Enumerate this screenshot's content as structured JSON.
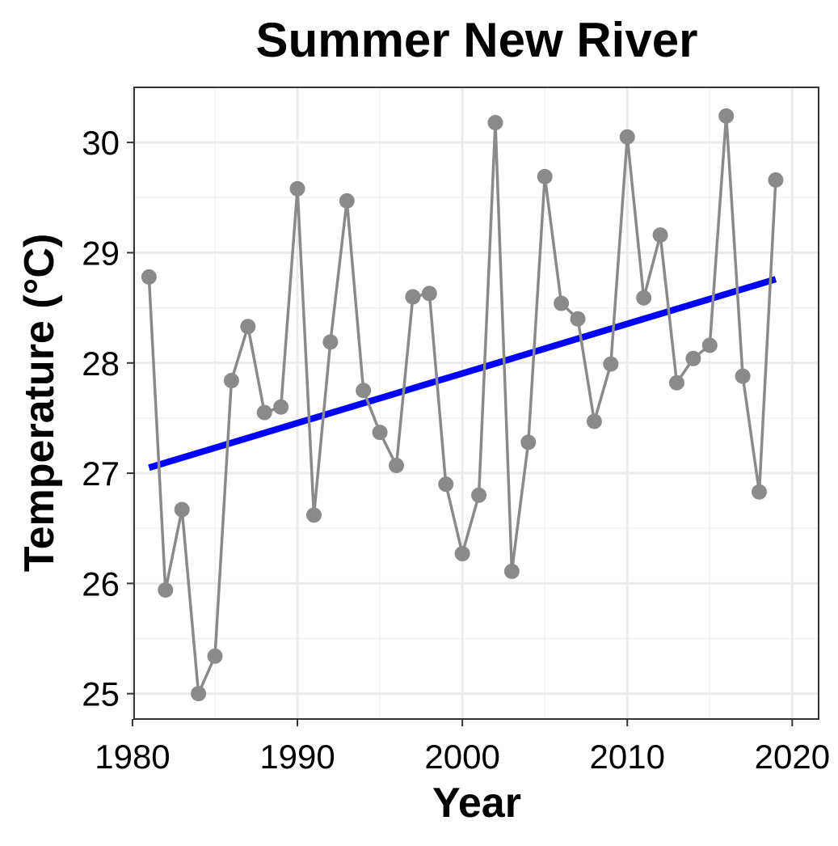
{
  "chart_data": {
    "type": "line",
    "title": "Summer New River",
    "xlabel": "Year",
    "ylabel": "Temperature (°C)",
    "xlim": [
      1980.1,
      2021.6
    ],
    "ylim": [
      24.77,
      30.5
    ],
    "x_ticks": [
      1980,
      1990,
      2000,
      2010,
      2020
    ],
    "x_tick_labels": [
      "1980",
      "1990",
      "2000",
      "2010",
      "2020"
    ],
    "y_ticks": [
      25,
      26,
      27,
      28,
      29,
      30
    ],
    "y_tick_labels": [
      "25",
      "26",
      "27",
      "28",
      "29",
      "30"
    ],
    "grid": true,
    "series": [
      {
        "color": "#8a8a8a",
        "x": [
          1981,
          1982,
          1983,
          1984,
          1985,
          1986,
          1987,
          1988,
          1989,
          1990,
          1991,
          1992,
          1993,
          1994,
          1995,
          1996,
          1997,
          1998,
          1999,
          2000,
          2001,
          2002,
          2003,
          2004,
          2005,
          2006,
          2007,
          2008,
          2009,
          2010,
          2011,
          2012,
          2013,
          2014,
          2015,
          2016,
          2017,
          2018,
          2019
        ],
        "y": [
          28.78,
          25.94,
          26.67,
          25.0,
          25.34,
          27.84,
          28.33,
          27.55,
          27.6,
          29.58,
          26.62,
          28.19,
          29.47,
          27.75,
          27.37,
          27.07,
          28.6,
          28.63,
          26.9,
          26.27,
          26.8,
          30.18,
          26.11,
          27.28,
          29.69,
          28.54,
          28.4,
          27.47,
          27.99,
          30.05,
          28.59,
          29.16,
          27.82,
          28.04,
          28.16,
          30.24,
          27.88,
          26.83,
          29.66
        ]
      }
    ],
    "trend_line": {
      "color": "#0000ff",
      "x": [
        1981,
        2019
      ],
      "y": [
        27.05,
        28.76
      ]
    }
  }
}
